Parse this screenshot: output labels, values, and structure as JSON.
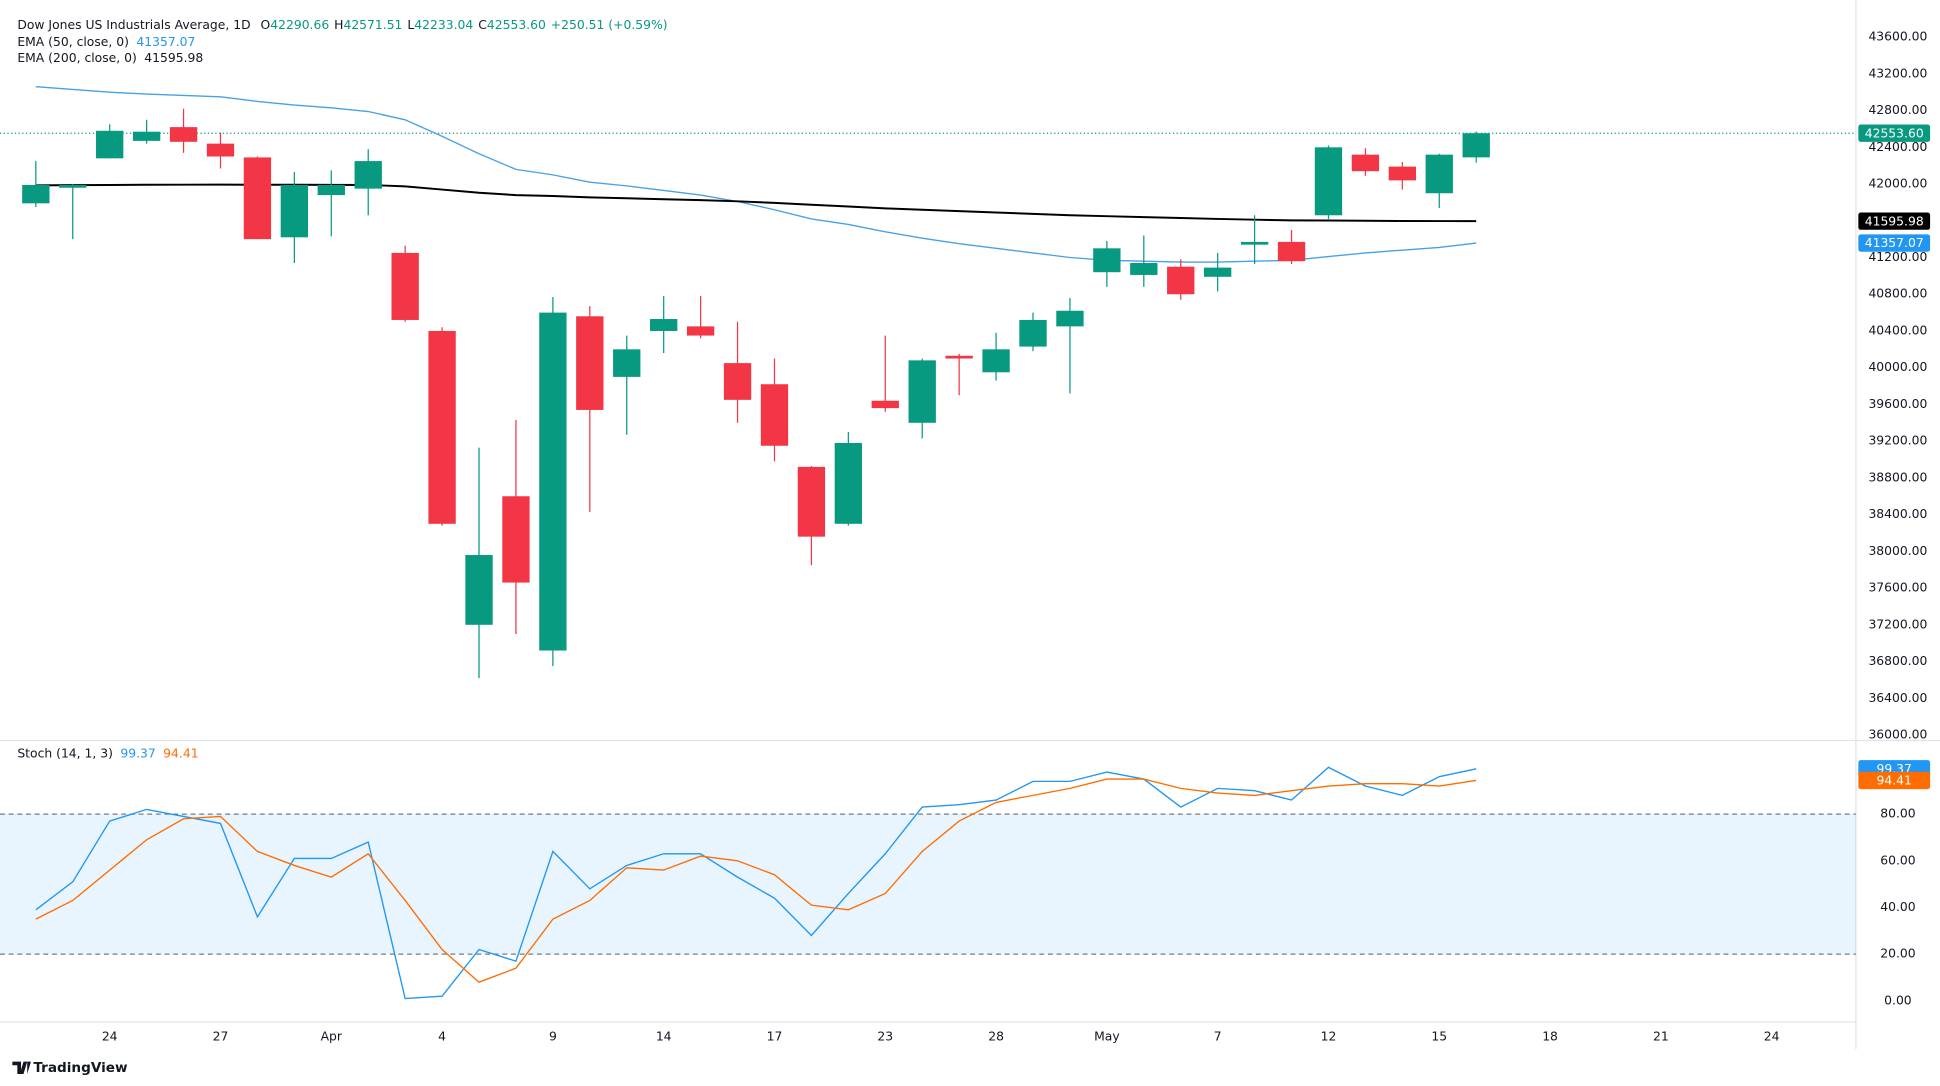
{
  "chart_data": [
    {
      "type": "candlestick",
      "title": "Dow Jones US Industrials Average, 1D",
      "ohlc_labels": [
        {
          "key": "O",
          "value": "42290.66"
        },
        {
          "key": "H",
          "value": "42571.51"
        },
        {
          "key": "L",
          "value": "42233.04"
        },
        {
          "key": "C",
          "value": "42553.60"
        }
      ],
      "change": "+250.51 (+0.59%)",
      "xlim": [
        -0.97,
        49.28
      ],
      "ylim": [
        35960,
        44004
      ],
      "yticks": [
        {
          "value": 36000,
          "label": "36000.00"
        },
        {
          "value": 36400,
          "label": "36400.00"
        },
        {
          "value": 36800,
          "label": "36800.00"
        },
        {
          "value": 37200,
          "label": "37200.00"
        },
        {
          "value": 37600,
          "label": "37600.00"
        },
        {
          "value": 38000,
          "label": "38000.00"
        },
        {
          "value": 38400,
          "label": "38400.00"
        },
        {
          "value": 38800,
          "label": "38800.00"
        },
        {
          "value": 39200,
          "label": "39200.00"
        },
        {
          "value": 39600,
          "label": "39600.00"
        },
        {
          "value": 40000,
          "label": "40000.00"
        },
        {
          "value": 40400,
          "label": "40400.00"
        },
        {
          "value": 40800,
          "label": "40800.00"
        },
        {
          "value": 41200,
          "label": "41200.00"
        },
        {
          "value": 41600,
          "label": "41600.00"
        },
        {
          "value": 42000,
          "label": "42000.00"
        },
        {
          "value": 42400,
          "label": "42400.00"
        },
        {
          "value": 42800,
          "label": "42800.00"
        },
        {
          "value": 43200,
          "label": "43200.00"
        },
        {
          "value": 43600,
          "label": "43600.00"
        }
      ],
      "up_color": "#089981",
      "down_color": "#f23645",
      "open": [
        41790,
        41960,
        42280,
        42470,
        42620,
        42440,
        42290,
        41420,
        41880,
        41950,
        41250,
        40400,
        37200,
        38600,
        36920,
        40560,
        39900,
        40400,
        40450,
        40050,
        39820,
        38920,
        38300,
        39640,
        39400,
        40130,
        39950,
        40230,
        40450,
        41040,
        41010,
        41100,
        40990,
        41340,
        41370,
        41660,
        42320,
        42190,
        41900,
        42290.66
      ],
      "high": [
        42250,
        42000,
        42650,
        42700,
        42820,
        42560,
        42300,
        42130,
        42150,
        42380,
        41330,
        40440,
        39130,
        39430,
        40770,
        40670,
        40350,
        40780,
        40780,
        40500,
        40100,
        38930,
        39300,
        40350,
        40100,
        40150,
        40380,
        40600,
        40760,
        41380,
        41440,
        41180,
        41250,
        41660,
        41500,
        42420,
        42390,
        42240,
        42330,
        42571.51
      ],
      "low": [
        41750,
        41400,
        42280,
        42440,
        42340,
        42170,
        41400,
        41140,
        41430,
        41660,
        40500,
        38280,
        36620,
        37100,
        36750,
        38430,
        39270,
        40160,
        40320,
        39400,
        38980,
        37850,
        38280,
        39520,
        39230,
        39700,
        39860,
        40180,
        39720,
        40880,
        40880,
        40740,
        40830,
        41130,
        41130,
        41620,
        42090,
        41940,
        41740,
        42233.04
      ],
      "close": [
        41990,
        41990,
        42580,
        42570,
        42460,
        42300,
        41400,
        41990,
        41990,
        42250,
        40520,
        38300,
        37960,
        37660,
        40600,
        39540,
        40200,
        40530,
        40350,
        39650,
        39150,
        38160,
        39180,
        39560,
        40080,
        40100,
        40200,
        40520,
        40620,
        41300,
        41140,
        40800,
        41090,
        41370,
        41160,
        42400,
        42140,
        42040,
        42320,
        42553.6
      ],
      "price_line": {
        "value": 42553.6,
        "label": "42553.60"
      },
      "series": [
        {
          "name": "EMA (50, close, 0)",
          "color": "#4aa0e6",
          "values": [
            43060,
            43030,
            43000,
            42980,
            42965,
            42950,
            42900,
            42860,
            42830,
            42790,
            42700,
            42520,
            42330,
            42160,
            42100,
            42020,
            41980,
            41930,
            41880,
            41810,
            41720,
            41620,
            41560,
            41480,
            41410,
            41350,
            41300,
            41250,
            41200,
            41170,
            41160,
            41150,
            41150,
            41160,
            41170,
            41210,
            41250,
            41280,
            41310,
            41357.07
          ]
        },
        {
          "name": "EMA (200, close, 0)",
          "color": "#000000",
          "values": [
            41985,
            41988,
            41990,
            41992,
            41993,
            41994,
            41992,
            41992,
            41991,
            41990,
            41975,
            41940,
            41905,
            41880,
            41870,
            41855,
            41845,
            41835,
            41825,
            41812,
            41795,
            41775,
            41755,
            41735,
            41720,
            41705,
            41690,
            41675,
            41660,
            41650,
            41640,
            41630,
            41620,
            41612,
            41605,
            41603,
            41600,
            41598,
            41597,
            41595.98
          ]
        }
      ]
    },
    {
      "type": "line",
      "title": "Stoch (14, 1, 3)",
      "xlim": [
        -0.97,
        49.28
      ],
      "xticks": [
        {
          "value": 2,
          "label": "24"
        },
        {
          "value": 5,
          "label": "27"
        },
        {
          "value": 8,
          "label": "Apr"
        },
        {
          "value": 11,
          "label": "4"
        },
        {
          "value": 14,
          "label": "9"
        },
        {
          "value": 17,
          "label": "14"
        },
        {
          "value": 20,
          "label": "17"
        },
        {
          "value": 23,
          "label": "23"
        },
        {
          "value": 26,
          "label": "28"
        },
        {
          "value": 29,
          "label": "May"
        },
        {
          "value": 32,
          "label": "7"
        },
        {
          "value": 35,
          "label": "12"
        },
        {
          "value": 38,
          "label": "15"
        },
        {
          "value": 41,
          "label": "18"
        },
        {
          "value": 44,
          "label": "21"
        },
        {
          "value": 47,
          "label": "24"
        }
      ],
      "ylim": [
        -20.7,
        110.7
      ],
      "yticks": [
        {
          "value": 0,
          "label": "0.00"
        },
        {
          "value": 20,
          "label": "20.00"
        },
        {
          "value": 40,
          "label": "40.00"
        },
        {
          "value": 60,
          "label": "60.00"
        },
        {
          "value": 80,
          "label": "80.00"
        }
      ],
      "bands": [
        20,
        80
      ],
      "band_color": "#2196f3",
      "series": [
        {
          "color": "#2196f3",
          "values": [
            39,
            51,
            77,
            82,
            79,
            76,
            36,
            61,
            61,
            68,
            1,
            2,
            22,
            17,
            64,
            48,
            58,
            63,
            63,
            53,
            44,
            28,
            46,
            63,
            83,
            84,
            86,
            94,
            94,
            98,
            95,
            83,
            91,
            90,
            86,
            100,
            92,
            88,
            96,
            99.37
          ]
        },
        {
          "color": "#ff6d00",
          "values": [
            35,
            43,
            56,
            69,
            78,
            79,
            64,
            58,
            53,
            63,
            43,
            22,
            8,
            14,
            35,
            43,
            57,
            56,
            62,
            60,
            54,
            41,
            39,
            46,
            64,
            77,
            85,
            88,
            91,
            95,
            95,
            91,
            89,
            88,
            90,
            92,
            93,
            93,
            92,
            94.41
          ]
        }
      ]
    }
  ],
  "footer": "TradingView"
}
